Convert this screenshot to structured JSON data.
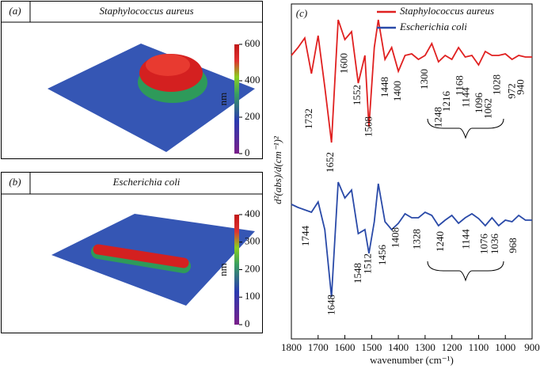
{
  "chart_data": [
    {
      "type": "image",
      "panel": "(a)",
      "title": "Staphylococcus aureus",
      "colorbar_label": "nm",
      "ylim": [
        0,
        600
      ],
      "yticks": [
        0,
        200,
        400,
        600
      ]
    },
    {
      "type": "image",
      "panel": "(b)",
      "title": "Escherichia coli",
      "colorbar_label": "nm",
      "ylim": [
        0,
        400
      ],
      "yticks": [
        0,
        100,
        200,
        300,
        400
      ]
    },
    {
      "type": "line",
      "panel": "(c)",
      "xlabel": "wavenumber (cm⁻¹)",
      "ylabel": "d²(abs)/d(cm⁻¹)²",
      "xlim": [
        1800,
        900
      ],
      "xticks": [
        1800,
        1700,
        1600,
        1500,
        1400,
        1300,
        1200,
        1100,
        1000,
        900
      ],
      "ylim": [
        0,
        423
      ],
      "x": [
        1800,
        1775,
        1750,
        1725,
        1700,
        1675,
        1650,
        1625,
        1600,
        1575,
        1550,
        1525,
        1510,
        1490,
        1475,
        1450,
        1425,
        1400,
        1375,
        1350,
        1325,
        1300,
        1275,
        1250,
        1225,
        1200,
        1175,
        1150,
        1125,
        1100,
        1075,
        1050,
        1025,
        1000,
        975,
        950,
        925,
        900
      ],
      "series": [
        {
          "name": "Staphylococcus aureus",
          "color": "#e02020",
          "values": [
            358,
            368,
            380,
            335,
            383,
            318,
            248,
            403,
            378,
            388,
            323,
            358,
            268,
            368,
            403,
            353,
            368,
            338,
            358,
            360,
            353,
            358,
            373,
            350,
            358,
            353,
            368,
            356,
            358,
            346,
            363,
            358,
            358,
            360,
            353,
            358,
            356,
            356
          ],
          "peaks": [
            1732,
            1652,
            1600,
            1552,
            1508,
            1448,
            1400,
            1300,
            1248,
            1216,
            1168,
            1144,
            1096,
            1062,
            1028,
            972,
            940
          ]
        },
        {
          "name": "Escherichia coli",
          "color": "#2a4aa8",
          "values": [
            170,
            166,
            163,
            160,
            173,
            138,
            53,
            198,
            178,
            188,
            133,
            138,
            108,
            148,
            196,
            148,
            138,
            146,
            158,
            153,
            153,
            160,
            156,
            143,
            150,
            156,
            146,
            153,
            158,
            152,
            143,
            153,
            143,
            150,
            148,
            156,
            150,
            150
          ],
          "peaks": [
            1744,
            1648,
            1548,
            1512,
            1456,
            1408,
            1328,
            1240,
            1144,
            1076,
            1036,
            968
          ]
        }
      ]
    }
  ]
}
